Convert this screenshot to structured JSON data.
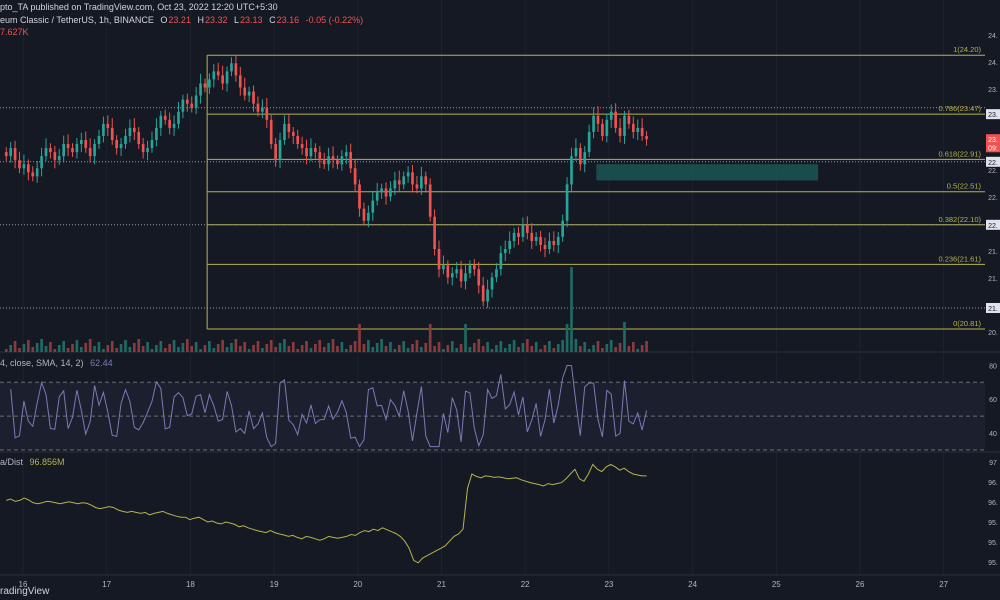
{
  "header": {
    "published": "pto_TA published on TradingView.com, Oct 23, 2022 12:20 UTC+5:30",
    "symbol": "eum Classic / TetherUS, 1h, BINANCE",
    "ohlc": {
      "o_label": "O",
      "o": "23.21",
      "h_label": "H",
      "h": "23.32",
      "l_label": "L",
      "l": "23.13",
      "c_label": "C",
      "c": "23.16",
      "chg": "-0.05 (-0.22%)"
    },
    "volume": "7.627K"
  },
  "rsi_header": {
    "text": "4, close, SMA, 14, 2)",
    "value": "62.44"
  },
  "dist_header": {
    "text": "a/Dist",
    "value": "96.856M"
  },
  "footer": {
    "brand": "radingView"
  },
  "colors": {
    "bg": "#151924",
    "up": "#26a69a",
    "down": "#ef5350",
    "fib": "#b7b34c",
    "rsi": "#7e79b7",
    "dist": "#b7b34c",
    "zone": "#1e5e5b"
  },
  "chart_data": [
    {
      "type": "candlestick",
      "symbol": "ETCUSDT",
      "timeframe": "1h",
      "x_ticks": [
        "16",
        "17",
        "18",
        "19",
        "20",
        "21",
        "22",
        "23",
        "24",
        "25",
        "26",
        "27"
      ],
      "y_ticks": [
        "24.",
        "24.",
        "23.",
        "23.",
        "23.",
        "22.",
        "22.",
        "22.",
        "21.",
        "21.",
        "21.",
        "20."
      ],
      "fib_levels": [
        {
          "label": "1(24.20)",
          "value": 24.2
        },
        {
          "label": "0.786(23.47)",
          "value": 23.47
        },
        {
          "label": "0.618(22.91)",
          "value": 22.91
        },
        {
          "label": "0.5(22.51)",
          "value": 22.51
        },
        {
          "label": "0.382(22.10)",
          "value": 22.1
        },
        {
          "label": "0.236(21.61)",
          "value": 21.61
        },
        {
          "label": "0(20.81)",
          "value": 20.81
        }
      ],
      "right_tags": [
        {
          "text": "23.",
          "value": 23.47,
          "style": "white"
        },
        {
          "text": "23.",
          "value": 23.16,
          "style": "red"
        },
        {
          "text": "09:",
          "value": 23.06,
          "style": "red"
        },
        {
          "text": "22.",
          "value": 22.88,
          "style": "white"
        },
        {
          "text": "22.",
          "value": 22.1,
          "style": "white"
        },
        {
          "text": "21.",
          "value": 21.07,
          "style": "white"
        }
      ],
      "dotted_levels": [
        23.55,
        22.88,
        22.1,
        21.07
      ],
      "demand_zone": {
        "from_day": 22.85,
        "to_day": 25.5,
        "low": 22.65,
        "high": 22.85
      },
      "closes": [
        22.95,
        23.05,
        22.9,
        22.8,
        22.85,
        22.75,
        22.7,
        22.8,
        22.95,
        23.05,
        23.0,
        22.9,
        22.95,
        23.1,
        23.05,
        23.0,
        23.1,
        23.15,
        23.05,
        22.95,
        23.1,
        23.2,
        23.35,
        23.3,
        23.15,
        23.05,
        23.1,
        23.2,
        23.3,
        23.25,
        23.1,
        23.0,
        23.05,
        23.15,
        23.3,
        23.45,
        23.4,
        23.3,
        23.35,
        23.5,
        23.65,
        23.6,
        23.55,
        23.7,
        23.85,
        23.8,
        23.9,
        24.0,
        23.95,
        23.85,
        24.0,
        24.1,
        23.95,
        23.8,
        23.7,
        23.75,
        23.6,
        23.5,
        23.55,
        23.4,
        23.1,
        22.9,
        23.15,
        23.35,
        23.25,
        23.2,
        23.1,
        23.05,
        22.95,
        23.05,
        23.0,
        22.9,
        22.85,
        22.95,
        22.9,
        22.85,
        22.95,
        23.0,
        22.8,
        22.6,
        22.3,
        22.15,
        22.25,
        22.4,
        22.5,
        22.55,
        22.45,
        22.55,
        22.65,
        22.6,
        22.7,
        22.75,
        22.6,
        22.55,
        22.7,
        22.6,
        22.2,
        21.8,
        21.55,
        21.6,
        21.45,
        21.5,
        21.55,
        21.4,
        21.5,
        21.6,
        21.55,
        21.35,
        21.15,
        21.3,
        21.45,
        21.55,
        21.75,
        21.8,
        21.9,
        22.0,
        21.95,
        22.1,
        22.0,
        21.9,
        21.95,
        21.85,
        21.8,
        21.9,
        21.85,
        21.95,
        22.15,
        22.6,
        22.95,
        23.05,
        22.85,
        23.0,
        23.25,
        23.45,
        23.35,
        23.2,
        23.4,
        23.5,
        23.3,
        23.2,
        23.45,
        23.35,
        23.25,
        23.3,
        23.2,
        23.16
      ],
      "dist_values": [
        96.35,
        96.38,
        96.33,
        96.35,
        96.4,
        96.36,
        96.3,
        96.28,
        96.3,
        96.33,
        96.32,
        96.3,
        96.28,
        96.3,
        96.32,
        96.3,
        96.28,
        96.3,
        96.29,
        96.25,
        96.2,
        96.18,
        96.2,
        96.22,
        96.2,
        96.15,
        96.12,
        96.1,
        96.12,
        96.1,
        96.08,
        96.1,
        96.05,
        96.08,
        96.1,
        96.12,
        96.08,
        96.05,
        96.02,
        96.0,
        96.0,
        95.95,
        95.98,
        96.0,
        95.95,
        95.9,
        95.92,
        95.88,
        95.86,
        95.9,
        95.88,
        95.85,
        95.8,
        95.82,
        95.78,
        95.75,
        95.72,
        95.7,
        95.68,
        95.72,
        95.68,
        95.65,
        95.63,
        95.6,
        95.62,
        95.58,
        95.55,
        95.6,
        95.58,
        95.55,
        95.52,
        95.55,
        95.6,
        95.58,
        95.56,
        95.58,
        95.6,
        95.64,
        95.62,
        95.68,
        95.72,
        95.7,
        95.75,
        95.72,
        95.78,
        95.74,
        95.7,
        95.66,
        95.6,
        95.5,
        95.35,
        95.1,
        95.05,
        95.15,
        95.2,
        95.25,
        95.3,
        95.35,
        95.4,
        95.5,
        95.6,
        95.65,
        95.75,
        96.6,
        96.9,
        96.85,
        96.82,
        96.86,
        96.85,
        96.83,
        96.84,
        96.82,
        96.8,
        96.81,
        96.82,
        96.78,
        96.75,
        96.72,
        96.7,
        96.68,
        96.65,
        96.7,
        96.68,
        96.7,
        96.72,
        96.8,
        96.9,
        97.0,
        96.8,
        96.75,
        96.9,
        97.1,
        97.0,
        96.95,
        97.05,
        97.1,
        97.05,
        96.98,
        97.02,
        96.95,
        96.9,
        96.88,
        96.86,
        96.86
      ]
    }
  ]
}
